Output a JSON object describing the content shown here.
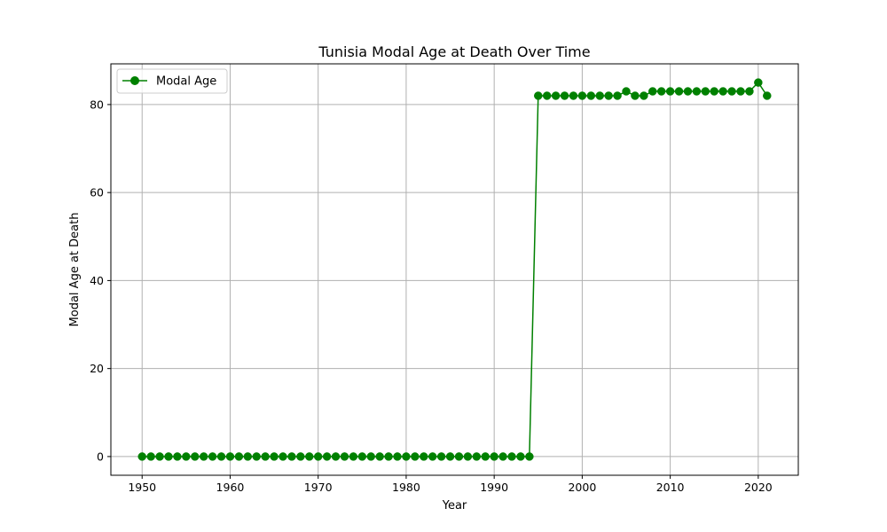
{
  "chart_data": {
    "type": "line",
    "title": "Tunisia Modal Age at Death Over Time",
    "xlabel": "Year",
    "ylabel": "Modal Age at Death",
    "xlim": [
      1946.45,
      2024.55
    ],
    "ylim": [
      -4.25,
      89.25
    ],
    "x_ticks": [
      1950,
      1960,
      1970,
      1980,
      1990,
      2000,
      2010,
      2020
    ],
    "y_ticks": [
      0,
      20,
      40,
      60,
      80
    ],
    "grid": true,
    "legend_position": "upper-left",
    "series": [
      {
        "name": "Modal Age",
        "color": "#008000",
        "marker": "circle",
        "x": [
          1950,
          1951,
          1952,
          1953,
          1954,
          1955,
          1956,
          1957,
          1958,
          1959,
          1960,
          1961,
          1962,
          1963,
          1964,
          1965,
          1966,
          1967,
          1968,
          1969,
          1970,
          1971,
          1972,
          1973,
          1974,
          1975,
          1976,
          1977,
          1978,
          1979,
          1980,
          1981,
          1982,
          1983,
          1984,
          1985,
          1986,
          1987,
          1988,
          1989,
          1990,
          1991,
          1992,
          1993,
          1994,
          1995,
          1996,
          1997,
          1998,
          1999,
          2000,
          2001,
          2002,
          2003,
          2004,
          2005,
          2006,
          2007,
          2008,
          2009,
          2010,
          2011,
          2012,
          2013,
          2014,
          2015,
          2016,
          2017,
          2018,
          2019,
          2020,
          2021
        ],
        "values": [
          0,
          0,
          0,
          0,
          0,
          0,
          0,
          0,
          0,
          0,
          0,
          0,
          0,
          0,
          0,
          0,
          0,
          0,
          0,
          0,
          0,
          0,
          0,
          0,
          0,
          0,
          0,
          0,
          0,
          0,
          0,
          0,
          0,
          0,
          0,
          0,
          0,
          0,
          0,
          0,
          0,
          0,
          0,
          0,
          0,
          82,
          82,
          82,
          82,
          82,
          82,
          82,
          82,
          82,
          82,
          83,
          82,
          82,
          83,
          83,
          83,
          83,
          83,
          83,
          83,
          83,
          83,
          83,
          83,
          83,
          85,
          82
        ]
      }
    ]
  }
}
